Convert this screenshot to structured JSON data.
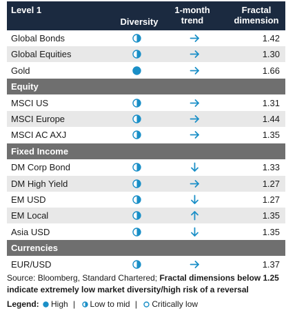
{
  "header": {
    "col1": "Level 1",
    "col2": "Diversity",
    "col3_line1": "1-month",
    "col3_line2": "trend",
    "col4_line1": "Fractal",
    "col4_line2": "dimension"
  },
  "level1_rows": [
    {
      "name": "Global Bonds",
      "diversity": "low-to-mid",
      "trend": "right",
      "value": "1.42"
    },
    {
      "name": "Global Equities",
      "diversity": "low-to-mid",
      "trend": "right",
      "value": "1.30"
    },
    {
      "name": "Gold",
      "diversity": "high",
      "trend": "right",
      "value": "1.66"
    }
  ],
  "equity": {
    "title": "Equity",
    "rows": [
      {
        "name": "MSCI US",
        "diversity": "low-to-mid",
        "trend": "right",
        "value": "1.31"
      },
      {
        "name": "MSCI Europe",
        "diversity": "low-to-mid",
        "trend": "right",
        "value": "1.44"
      },
      {
        "name": "MSCI AC AXJ",
        "diversity": "low-to-mid",
        "trend": "right",
        "value": "1.35"
      }
    ]
  },
  "fixed_income": {
    "title": "Fixed Income",
    "rows": [
      {
        "name": "DM Corp Bond",
        "diversity": "low-to-mid",
        "trend": "down",
        "value": "1.33"
      },
      {
        "name": "DM High Yield",
        "diversity": "low-to-mid",
        "trend": "right",
        "value": "1.27"
      },
      {
        "name": "EM USD",
        "diversity": "low-to-mid",
        "trend": "down",
        "value": "1.27"
      },
      {
        "name": "EM Local",
        "diversity": "low-to-mid",
        "trend": "up",
        "value": "1.35"
      },
      {
        "name": "Asia USD",
        "diversity": "low-to-mid",
        "trend": "down",
        "value": "1.35"
      }
    ]
  },
  "currencies": {
    "title": "Currencies",
    "rows": [
      {
        "name": "EUR/USD",
        "diversity": "low-to-mid",
        "trend": "right",
        "value": "1.37"
      }
    ]
  },
  "source": {
    "plain": "Source: Bloomberg, Standard Chartered; ",
    "bold": "Fractal dimensions below 1.25 indicate extremely low market diversity/high risk of a reversal"
  },
  "legend": {
    "label": "Legend:",
    "high": "High",
    "low_to_mid": "Low to mid",
    "critically_low": "Critically low",
    "sep": "|"
  },
  "colors": {
    "header_bg": "#1b2a40",
    "section_bg": "#6f6f6f",
    "alt_row_bg": "#e8e8e8",
    "accent": "#1a8fc7"
  }
}
